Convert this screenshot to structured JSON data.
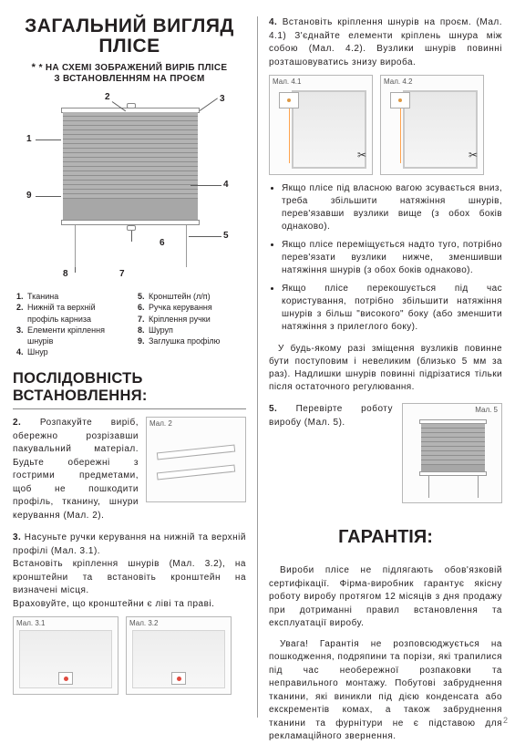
{
  "left": {
    "title_l1": "ЗАГАЛЬНИЙ ВИГЛЯД",
    "title_l2": "ПЛІСЕ",
    "subtitle_l1": "* НА СХЕМІ ЗОБРАЖЕНИЙ ВИРІБ ПЛІСЕ",
    "subtitle_l2": "З ВСТАНОВЛЕННЯМ НА ПРОЄМ",
    "callouts": {
      "n1": "1",
      "n2": "2",
      "n3": "3",
      "n4": "4",
      "n5": "5",
      "n6": "6",
      "n7": "7",
      "n8": "8",
      "n9": "9"
    },
    "legend_left": [
      {
        "num": "1.",
        "label": "Тканина"
      },
      {
        "num": "2.",
        "label": "Нижній та верхній профіль карниза"
      },
      {
        "num": "3.",
        "label": "Елементи кріплення шнурів"
      },
      {
        "num": "4.",
        "label": "Шнур"
      }
    ],
    "legend_right": [
      {
        "num": "5.",
        "label": "Кронштейн (л/п)"
      },
      {
        "num": "6.",
        "label": "Ручка керування"
      },
      {
        "num": "7.",
        "label": "Кріплення ручки"
      },
      {
        "num": "8.",
        "label": "Шуруп"
      },
      {
        "num": "9.",
        "label": "Заглушка профілю"
      }
    ],
    "section2_h": "ПОСЛІДОВНІСТЬ ВСТАНОВЛЕННЯ:",
    "step2_num": "2.",
    "step2_text": " Розпакуйте виріб, обережно розрізавши пакувальний матеріал. Будьте обережні з гострими предметами, щоб не пошкодити профіль, тканину, шнури керування (Мал. 2).",
    "fig2_label": "Мал. 2",
    "step3_num": "3.",
    "step3_text_a": " Насуньте ручки керування на нижній та верхній профілі (Мал. 3.1).",
    "step3_text_b": "Встановіть кріплення шнурів (Мал. 3.2), на кронштейни та встановіть кронштейн на визначені місця.",
    "step3_text_c": "Враховуйте, що кронштейни є ліві та праві.",
    "fig31_label": "Мал. 3.1",
    "fig32_label": "Мал. 3.2"
  },
  "right": {
    "step4_num": "4.",
    "step4_text": " Встановіть кріплення шнурів на проєм. (Мал. 4.1) З'єднайте елементи кріплень шнура між собою (Мал. 4.2). Вузлики шнурів повинні розташовуватись знизу вироба.",
    "fig41_label": "Мал. 4.1",
    "fig42_label": "Мал. 4.2",
    "bullets": [
      "Якщо плісе під власною вагою зсувається вниз, треба збільшити натяжіння шнурів, перев'язавши вузлики вище (з обох боків однаково).",
      "Якщо плісе переміщується надто туго, потрібно перев'язати вузлики нижче, зменшивши натяжіння шнурів (з обох боків однаково).",
      "Якщо плісе перекошується під час користування, потрібно збільшити натяжіння шнурів з більш \"високого\" боку (або зменшити натяжіння з прилеглого боку)."
    ],
    "note": "У будь-якому разі зміщення вузликів повинне бути поступовим і невеликим (близько 5 мм за раз). Надлишки шнурів повинні підрізатися тільки після остаточного регулювання.",
    "step5_num": "5.",
    "step5_text": " Перевірте роботу виробу (Мал. 5).",
    "fig5_label": "Мал. 5",
    "warranty_h": "ГАРАНТІЯ:",
    "warranty_p1": "Вироби плісе не підлягають обов'язковій сертифікації. Фірма-виробник гарантує якісну роботу виробу протягом 12 місяців з дня продажу при дотриманні правил встановлення та експлуатації виробу.",
    "warranty_p2": "Увага! Гарантія не розповсюджується на пошкодження, подряпини та порізи, які трапилися під час необережної розпаковки та неправильного монтажу. Побутові забруднення тканини, які виникли під дією конденсата або екскрементів комах, а також забруднення тканини та фурнітури не є підставою для рекламаційного звернення."
  },
  "page_number": "2",
  "colors": {
    "text": "#231f20",
    "rule": "#888888",
    "figure_border": "#b7b7b7",
    "blind_fill": "#a7a7a7",
    "accent_red": "#e04a3f"
  }
}
